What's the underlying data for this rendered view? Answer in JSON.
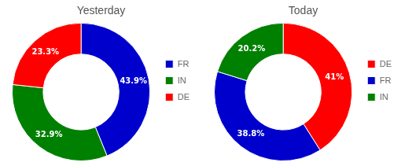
{
  "chart_data": [
    {
      "type": "donut",
      "title": "Yesterday",
      "categories": [
        "FR",
        "IN",
        "DE"
      ],
      "values": [
        43.9,
        32.9,
        23.3
      ],
      "value_labels": [
        "43.9%",
        "32.9%",
        "23.3%"
      ],
      "colors": [
        "#0000CC",
        "#008000",
        "#FF0000"
      ],
      "data_labels": true,
      "legend": "right"
    },
    {
      "type": "donut",
      "title": "Today",
      "categories": [
        "DE",
        "FR",
        "IN"
      ],
      "values": [
        41.0,
        38.8,
        20.2
      ],
      "value_labels": [
        "41%",
        "38.8%",
        "20.2%"
      ],
      "colors": [
        "#FF0000",
        "#0000CC",
        "#008000"
      ],
      "data_labels": true,
      "legend": "right"
    }
  ]
}
